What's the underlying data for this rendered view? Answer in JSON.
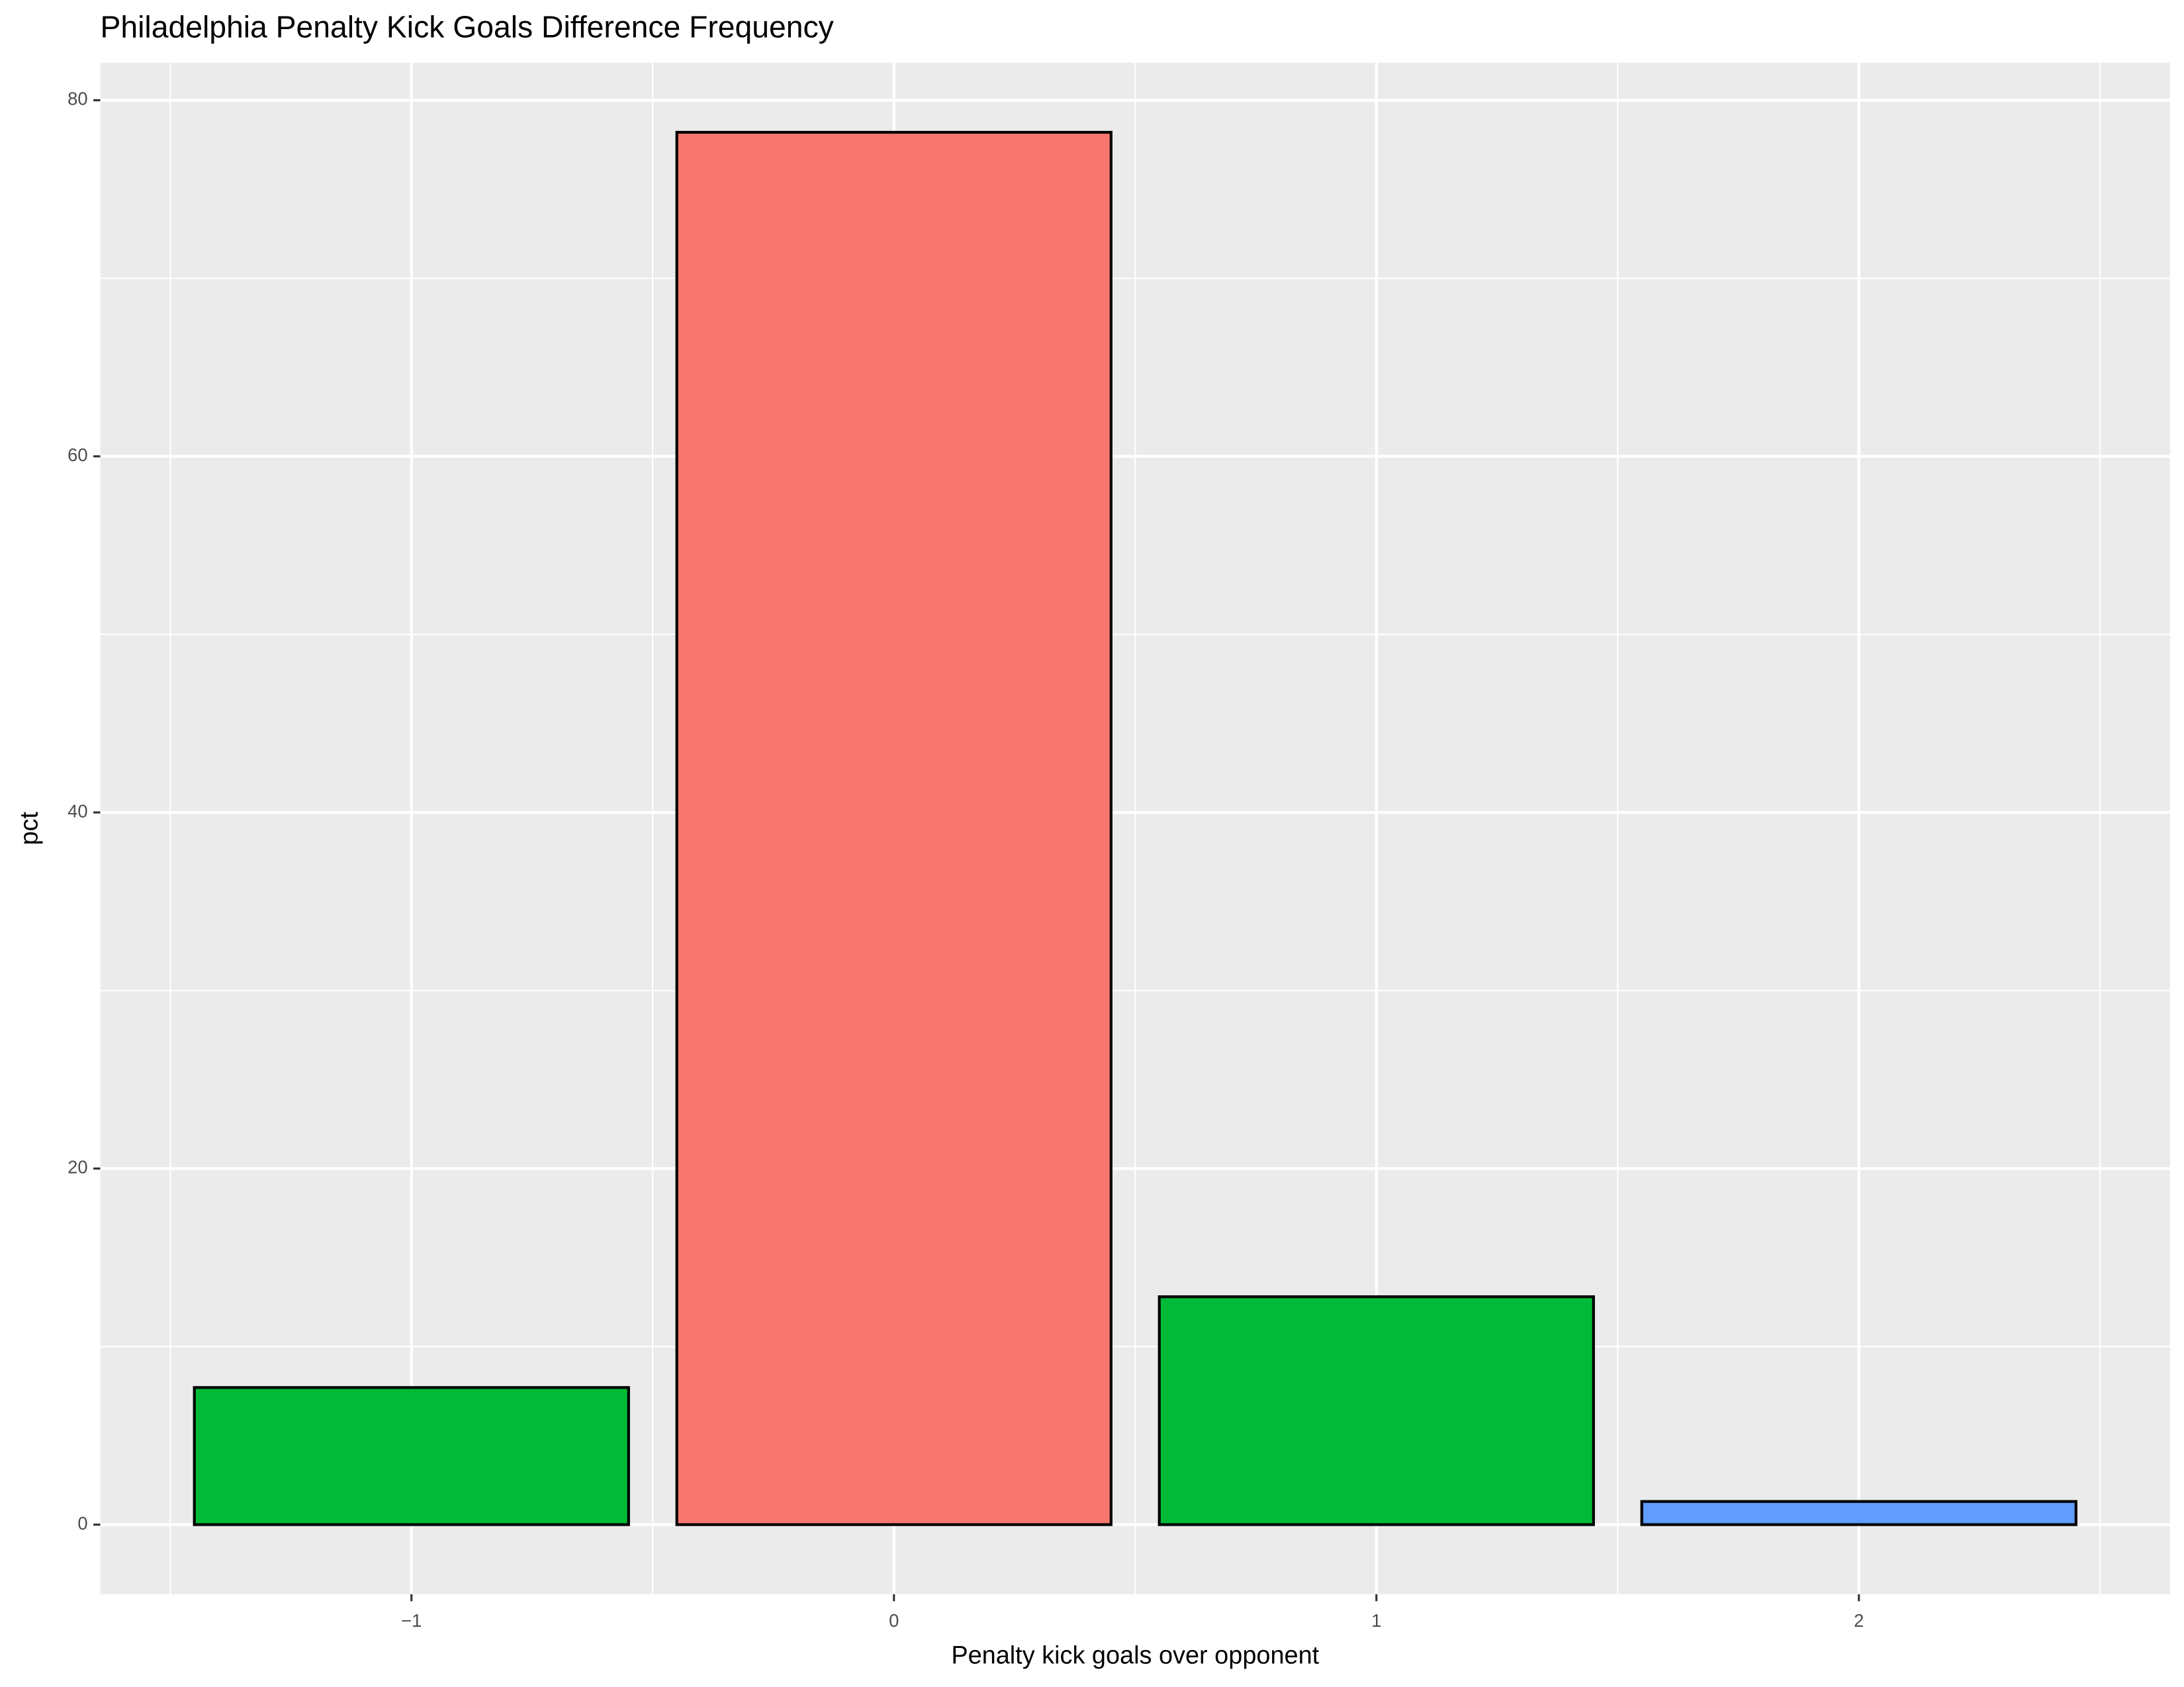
{
  "chart_data": {
    "type": "bar",
    "title": "Philadelphia Penalty Kick Goals Difference Frequency",
    "x_label": "Penalty kick goals over opponent",
    "y_label": "pct",
    "x": [
      -1,
      0,
      1,
      2
    ],
    "values": [
      7.7,
      78.2,
      12.8,
      1.3
    ],
    "colors": [
      "#00BA38",
      "#F8766D",
      "#00BA38",
      "#619CFF"
    ],
    "xlim": [
      -1.645,
      2.645
    ],
    "ylim": [
      -3.91,
      82.11
    ],
    "xticks": [
      {
        "value": -1,
        "label": "−1"
      },
      0,
      1,
      2
    ],
    "yticks": [
      0,
      20,
      40,
      60,
      80
    ],
    "grid": true
  }
}
